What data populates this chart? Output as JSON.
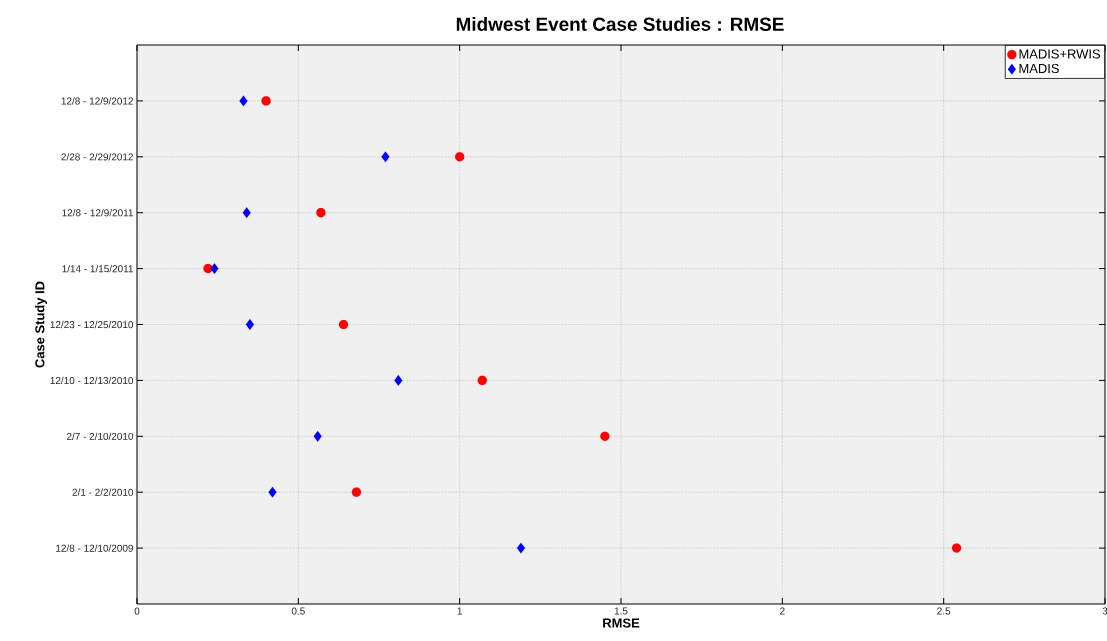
{
  "chart_data": {
    "type": "scatter",
    "orientation": "horizontal",
    "title": "Midwest Event Case Studies : RMSE",
    "xlabel": "RMSE",
    "ylabel": "Case Study ID",
    "categories": [
      "12/8 - 12/9/2012",
      "2/28 - 2/29/2012",
      "12/8 - 12/9/2011",
      "1/14 - 1/15/2011",
      "12/23 - 12/25/2010",
      "12/10 - 12/13/2010",
      "2/7 - 2/10/2010",
      "2/1 - 2/2/2010",
      "12/8 - 12/10/2009"
    ],
    "series": [
      {
        "name": "MADIS+RWIS",
        "color": "#ff0000",
        "marker": "circle",
        "values": [
          0.4,
          1.0,
          0.57,
          0.22,
          0.64,
          1.07,
          1.45,
          0.68,
          2.54
        ]
      },
      {
        "name": "MADIS",
        "color": "#0000ff",
        "marker": "diamond",
        "values": [
          0.33,
          0.77,
          0.34,
          0.24,
          0.35,
          0.81,
          0.56,
          0.42,
          1.19
        ]
      }
    ],
    "xlim": [
      0,
      3
    ],
    "xticks": [
      0,
      0.5,
      1,
      1.5,
      2,
      2.5,
      3
    ],
    "grid": true,
    "legend": "top right"
  }
}
